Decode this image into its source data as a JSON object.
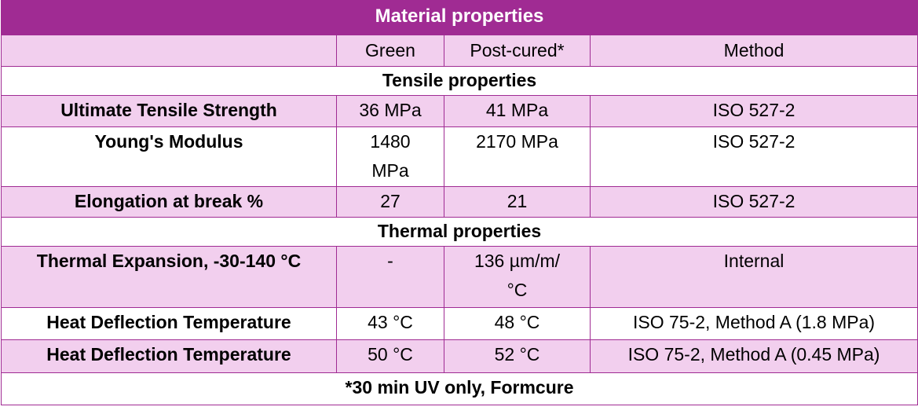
{
  "title": "Material properties",
  "columns": [
    "",
    "Green",
    "Post-cured*",
    "Method"
  ],
  "sections": [
    {
      "name": "Tensile properties",
      "rows": [
        {
          "property": "Ultimate Tensile Strength",
          "green": "36 MPa",
          "post_cured": "41 MPa",
          "method": "ISO 527-2"
        },
        {
          "property": "Young's Modulus",
          "green": "1480 MPa",
          "post_cured": "2170 MPa",
          "method": "ISO 527-2"
        },
        {
          "property": "Elongation at break %",
          "green": "27",
          "post_cured": "21",
          "method": "ISO 527-2"
        }
      ]
    },
    {
      "name": "Thermal properties",
      "rows": [
        {
          "property": "Thermal Expansion, -30-140 °C",
          "green": "-",
          "post_cured": "136 µm/m/°C",
          "method": "Internal"
        },
        {
          "property": "Heat Deflection Temperature",
          "green": "43 °C",
          "post_cured": "48 °C",
          "method": "ISO 75-2, Method A (1.8 MPa)"
        },
        {
          "property": "Heat Deflection Temperature",
          "green": "50 °C",
          "post_cured": "52 °C",
          "method": "ISO 75-2, Method A (0.45 MPa)"
        }
      ]
    }
  ],
  "footnote": "*30 min UV only, Formcure",
  "colors": {
    "header": "#a02b93",
    "band": "#f2cfee",
    "border": "#a02b93"
  }
}
